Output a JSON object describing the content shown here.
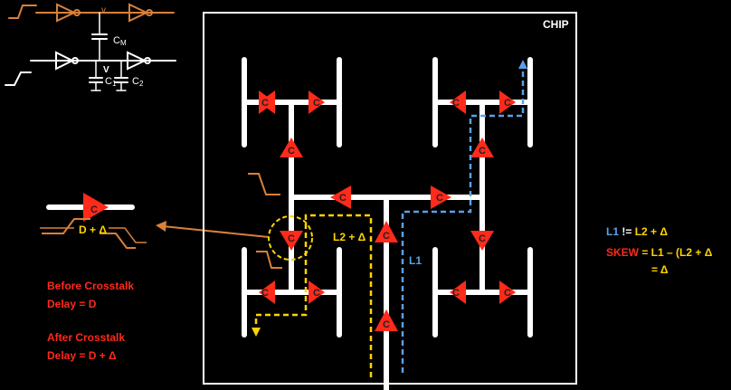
{
  "chip_label": "CHIP",
  "crosstalk": {
    "caps": {
      "cm": "C",
      "cm_sub": "M",
      "v": "V",
      "c1": "C",
      "c1_sub": "1",
      "c2": "C",
      "c2_sub": "2"
    },
    "buffer_delay_label": "D + Δ",
    "before": {
      "title": "Before Crosstalk",
      "delay": "Delay = D"
    },
    "after": {
      "title": "After Crosstalk",
      "delay": "Delay = D + Δ"
    }
  },
  "paths": {
    "l1": "L1",
    "l2": "L2 + Δ"
  },
  "equations": {
    "line1_a": "L1",
    "line1_b": " != ",
    "line1_c": "L2 + Δ",
    "line2_a": "SKEW",
    "line2_b": " = L1 – (L2 + Δ",
    "line3": "= Δ"
  },
  "buffer_glyph": "C",
  "colors": {
    "background": "#000000",
    "wire": "#ffffff",
    "buffer": "#ff2a1a",
    "orange": "#d9803a",
    "yellow_path": "#ffd400",
    "blue_path": "#5aa0e6"
  }
}
